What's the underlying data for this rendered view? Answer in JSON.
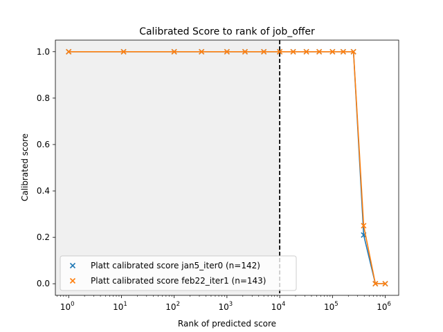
{
  "chart_data": {
    "type": "line",
    "title": "Calibrated Score to rank of job_offer",
    "xlabel": "Rank of predicted score",
    "ylabel": "Calibrated score",
    "xscale": "log",
    "xlim": [
      0.56,
      1800000
    ],
    "ylim": [
      -0.05,
      1.05
    ],
    "x_ticks": [
      {
        "value": 1,
        "base": "10",
        "exp": "0"
      },
      {
        "value": 10,
        "base": "10",
        "exp": "1"
      },
      {
        "value": 100,
        "base": "10",
        "exp": "2"
      },
      {
        "value": 1000,
        "base": "10",
        "exp": "3"
      },
      {
        "value": 10000,
        "base": "10",
        "exp": "4"
      },
      {
        "value": 100000,
        "base": "10",
        "exp": "5"
      },
      {
        "value": 1000000,
        "base": "10",
        "exp": "6"
      }
    ],
    "y_ticks": [
      {
        "value": 0.0,
        "label": "0.0"
      },
      {
        "value": 0.2,
        "label": "0.2"
      },
      {
        "value": 0.4,
        "label": "0.4"
      },
      {
        "value": 0.6,
        "label": "0.6"
      },
      {
        "value": 0.8,
        "label": "0.8"
      },
      {
        "value": 1.0,
        "label": "1.0"
      }
    ],
    "shaded_region": {
      "x_from": 0.56,
      "x_to": 10000,
      "color": "#f0f0f0"
    },
    "vline": {
      "x": 10000,
      "style": "dashed",
      "color": "#000000"
    },
    "grid": false,
    "legend_position": "lower-left",
    "series": [
      {
        "name": "Platt calibrated score jan5_iter0 (n=142)",
        "color": "#1f77b4",
        "marker": "x",
        "x": [
          1,
          11,
          100,
          330,
          1000,
          2200,
          5000,
          10000,
          18000,
          32000,
          56000,
          100000,
          160000,
          250000,
          390000,
          650000,
          1000000
        ],
        "y": [
          1.0,
          1.0,
          1.0,
          1.0,
          1.0,
          1.0,
          1.0,
          1.0,
          1.0,
          1.0,
          1.0,
          1.0,
          1.0,
          1.0,
          0.21,
          0.0,
          0.0
        ]
      },
      {
        "name": "Platt calibrated score feb22_iter1 (n=143)",
        "color": "#ff7f0e",
        "marker": "x",
        "x": [
          1,
          11,
          100,
          330,
          1000,
          2200,
          5000,
          10000,
          18000,
          32000,
          56000,
          100000,
          160000,
          250000,
          390000,
          650000,
          1000000
        ],
        "y": [
          1.0,
          1.0,
          1.0,
          1.0,
          1.0,
          1.0,
          1.0,
          1.0,
          1.0,
          1.0,
          1.0,
          1.0,
          1.0,
          1.0,
          0.25,
          0.0,
          0.0
        ]
      }
    ]
  }
}
